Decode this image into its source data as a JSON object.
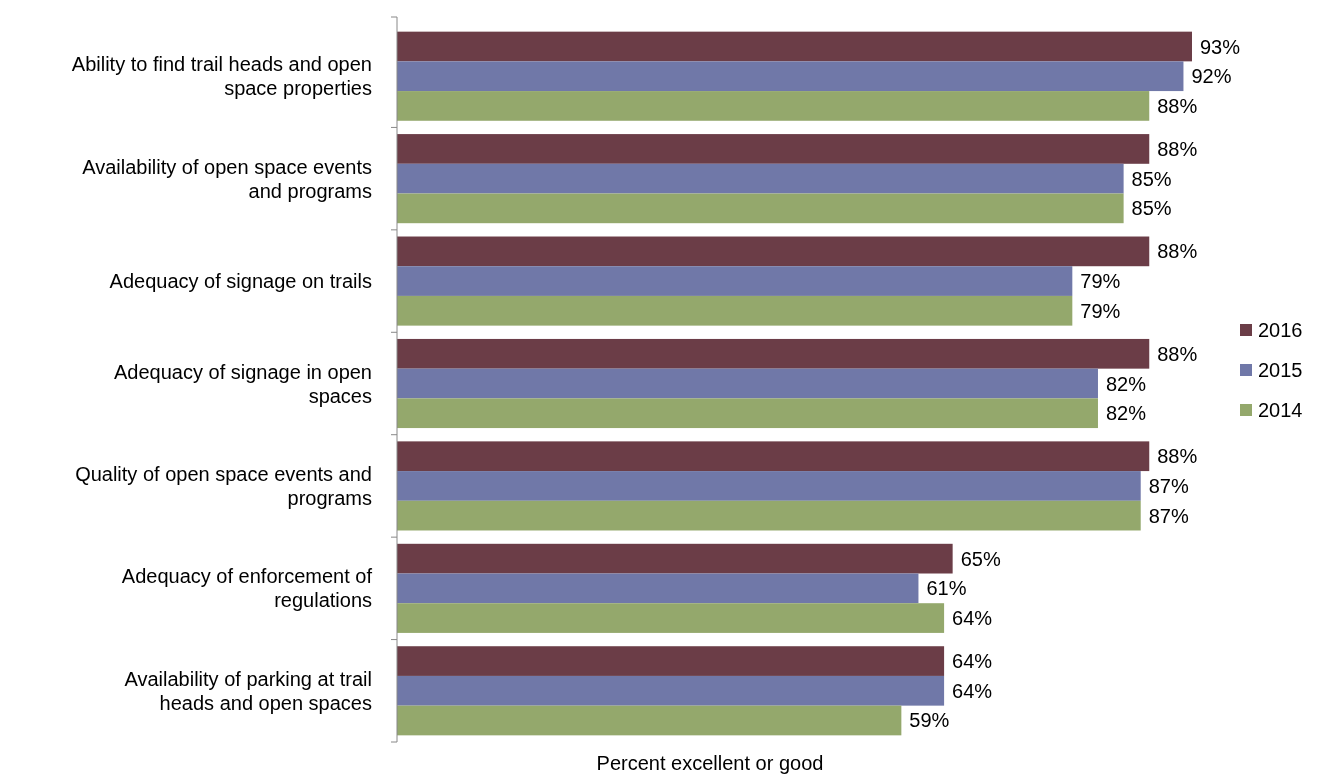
{
  "chart_data": {
    "type": "bar",
    "orientation": "horizontal",
    "xlabel": "Percent excellent or good",
    "categories": [
      "Ability to find trail heads and open space properties",
      "Availability of open space events and programs",
      "Adequacy of signage on trails",
      "Adequacy of signage in open spaces",
      "Quality of open space events and programs",
      "Adequacy of enforcement of regulations",
      "Availability of parking at trail heads and open spaces"
    ],
    "series": [
      {
        "name": "2016",
        "color": "#6b3d47",
        "values": [
          93,
          88,
          88,
          88,
          88,
          65,
          64
        ],
        "value_labels": [
          "93%",
          "88%",
          "88%",
          "88%",
          "88%",
          "65%",
          "64%"
        ]
      },
      {
        "name": "2015",
        "color": "#7078a8",
        "values": [
          92,
          85,
          79,
          82,
          87,
          61,
          64
        ],
        "value_labels": [
          "92%",
          "85%",
          "79%",
          "82%",
          "87%",
          "61%",
          "64%"
        ]
      },
      {
        "name": "2014",
        "color": "#94a86c",
        "values": [
          88,
          85,
          79,
          82,
          87,
          64,
          59
        ],
        "value_labels": [
          "88%",
          "85%",
          "79%",
          "82%",
          "87%",
          "64%",
          "59%"
        ]
      }
    ],
    "legend": "right"
  }
}
